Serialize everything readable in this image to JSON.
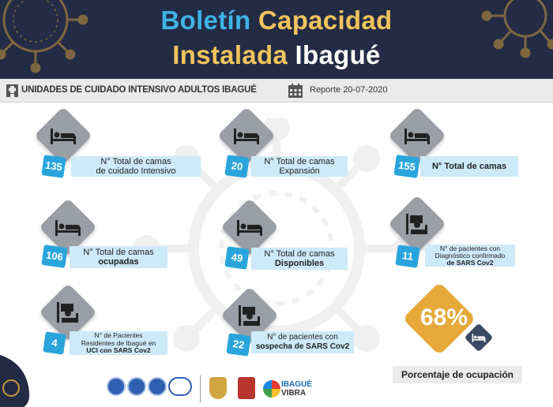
{
  "header": {
    "title_word1": "Boletín",
    "title_word2": "Capacidad",
    "title_word3": "Instalada",
    "title_word4": "Ibagué"
  },
  "subheader": {
    "title": "UNIDADES DE CUIDADO INTENSIVO ADULTOS IBAGUÉ",
    "report_date": "Reporte 20-07-2020"
  },
  "cards": [
    {
      "value": "135",
      "label_line1": "N° Total  de camas",
      "label_line2": "de cuidado Intensivo",
      "icon": "bed-icon"
    },
    {
      "value": "20",
      "label_line1": "N° Total  de camas",
      "label_line2": "Expansión",
      "icon": "bed-icon"
    },
    {
      "value": "155",
      "label_line1": "N° Total de camas",
      "label_line2": "",
      "icon": "bed-icon"
    },
    {
      "value": "106",
      "label_line1": "N° Total  de camas",
      "label_line2": "ocupadas",
      "icon": "bed-icon"
    },
    {
      "value": "49",
      "label_line1": "N° Total  de camas",
      "label_line2": "Disponibles",
      "icon": "bed-icon"
    },
    {
      "value": "11",
      "label_line1": "N° de pacientes con",
      "label_line2": "Diagnóstico confirmado",
      "label_line3": "de SARS Cov2",
      "icon": "patient-monitor-icon"
    },
    {
      "value": "4",
      "label_line1": "N° de Pacientes",
      "label_line2": "Residentes  de Ibagué en",
      "label_line3": "UCI con SARS Cov2",
      "icon": "patient-monitor-icon"
    },
    {
      "value": "22",
      "label_line1": "N° de pacientes con",
      "label_line2": "sospecha de SARS Cov2",
      "icon": "patient-monitor-icon"
    }
  ],
  "occupancy": {
    "percent": "68%",
    "value": 68,
    "label": "Porcentaje  de ocupación"
  },
  "footer": {
    "brand_line1": "IBAGUÉ",
    "brand_line2": "VIBRA"
  },
  "colors": {
    "header_bg": "#232c44",
    "title_blue": "#3eb4e8",
    "title_gold": "#f2c45c",
    "badge": "#2aa5dc",
    "label_bg": "#cdeaf8",
    "occupancy": "#e6a93a"
  }
}
